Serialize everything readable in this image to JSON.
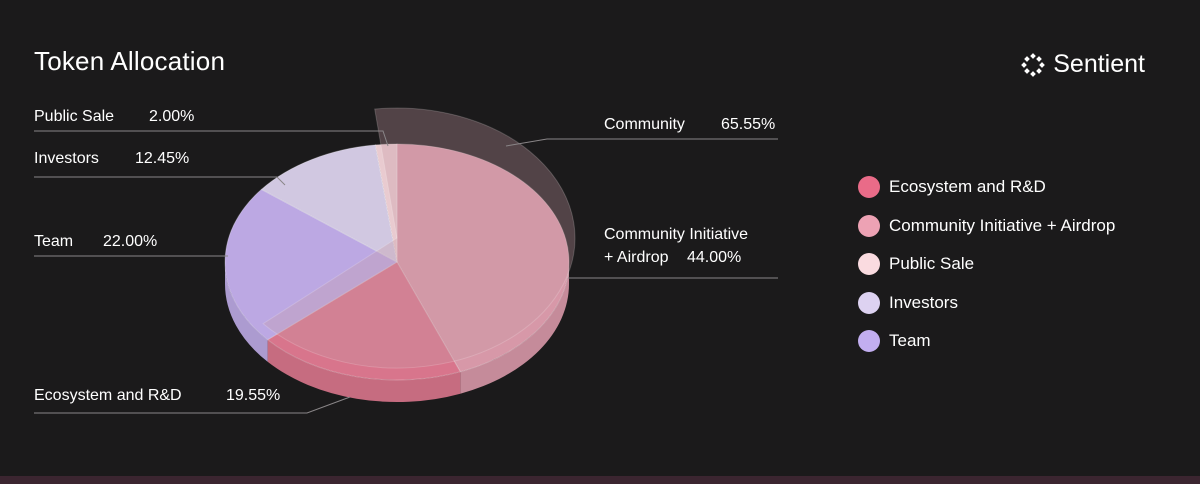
{
  "header": {
    "title": "Token Allocation",
    "brand": "Sentient",
    "brand_icon": "sentient-logo-icon"
  },
  "chart_data": {
    "type": "pie",
    "title": "Token Allocation",
    "slices": [
      {
        "label": "Community Initiative + Airdrop",
        "value": 44.0,
        "color": "#e5a2b3"
      },
      {
        "label": "Ecosystem and R&D",
        "value": 19.55,
        "color": "#e67d95"
      },
      {
        "label": "Team",
        "value": 22.0,
        "color": "#c8b4f2"
      },
      {
        "label": "Investors",
        "value": 12.45,
        "color": "#dfd6f0"
      },
      {
        "label": "Public Sale",
        "value": 2.0,
        "color": "#f9d9de"
      }
    ],
    "group": {
      "label": "Community",
      "value": 65.55,
      "members": [
        "Public Sale",
        "Community Initiative + Airdrop",
        "Ecosystem and R&D"
      ]
    },
    "callouts": {
      "public_sale": {
        "name": "Public Sale",
        "pct": "2.00%"
      },
      "investors": {
        "name": "Investors",
        "pct": "12.45%"
      },
      "team": {
        "name": "Team",
        "pct": "22.00%"
      },
      "ecosystem": {
        "name": "Ecosystem and R&D",
        "pct": "19.55%"
      },
      "community": {
        "name": "Community",
        "pct": "65.55%"
      },
      "cia_line1": "Community Initiative",
      "cia_line2_name": "+ Airdrop",
      "cia_pct": "44.00%"
    },
    "legend": [
      {
        "label": "Ecosystem and R&D",
        "color": "#e96b88"
      },
      {
        "label": "Community Initiative + Airdrop",
        "color": "#eda2b4"
      },
      {
        "label": "Public Sale",
        "color": "#fadbe0"
      },
      {
        "label": "Investors",
        "color": "#ddd2f1"
      },
      {
        "label": "Team",
        "color": "#c2aef0"
      }
    ],
    "legend_position": "right"
  }
}
